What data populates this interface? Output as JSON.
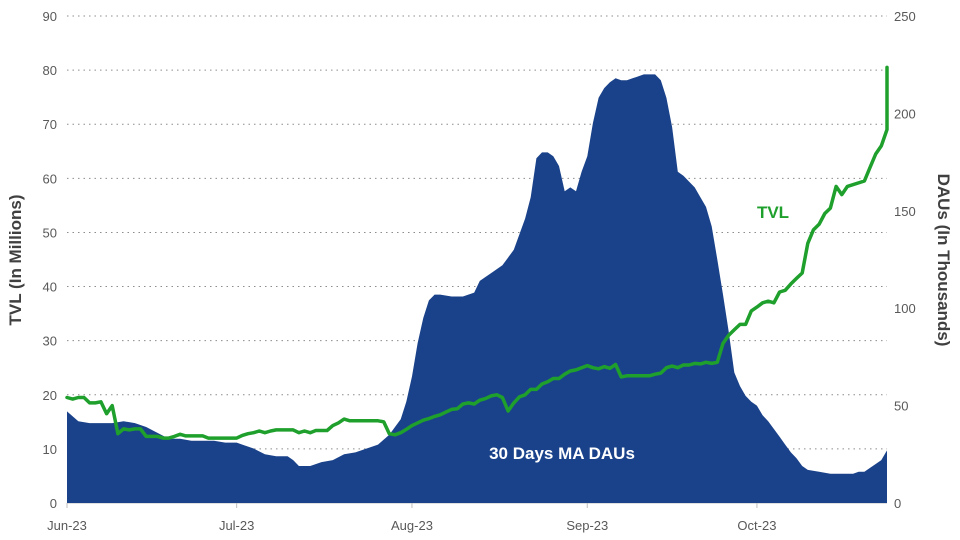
{
  "chart_data": {
    "type": "area+line",
    "x_ticks": [
      "Jun-23",
      "Jul-23",
      "Aug-23",
      "Sep-23",
      "Oct-23"
    ],
    "x_tick_days": [
      0,
      30,
      61,
      92,
      122
    ],
    "x_range_days": [
      0,
      145
    ],
    "y_left": {
      "label": "TVL (In Millions)",
      "min": 0,
      "max": 90,
      "ticks": [
        0,
        10,
        20,
        30,
        40,
        50,
        60,
        70,
        80,
        90
      ]
    },
    "y_right": {
      "label": "DAUs (In Thousands)",
      "min": 0,
      "max": 250,
      "ticks": [
        0,
        50,
        100,
        150,
        200,
        250
      ]
    },
    "grid": true,
    "series": [
      {
        "name": "30 Days MA DAUs",
        "kind": "area",
        "axis": "right",
        "color": "#1a428a",
        "points": [
          [
            0,
            47
          ],
          [
            2,
            42
          ],
          [
            4,
            41
          ],
          [
            6,
            41
          ],
          [
            8,
            41
          ],
          [
            10,
            42
          ],
          [
            12,
            41
          ],
          [
            14,
            39
          ],
          [
            16,
            36
          ],
          [
            18,
            33
          ],
          [
            20,
            33
          ],
          [
            22,
            32
          ],
          [
            24,
            32
          ],
          [
            26,
            32
          ],
          [
            28,
            31
          ],
          [
            30,
            31
          ],
          [
            31,
            30
          ],
          [
            33,
            28
          ],
          [
            35,
            25
          ],
          [
            37,
            24
          ],
          [
            39,
            24
          ],
          [
            40,
            22
          ],
          [
            41,
            19
          ],
          [
            43,
            19
          ],
          [
            45,
            21
          ],
          [
            47,
            22
          ],
          [
            49,
            25
          ],
          [
            51,
            26
          ],
          [
            53,
            28
          ],
          [
            55,
            30
          ],
          [
            57,
            35
          ],
          [
            59,
            43
          ],
          [
            60,
            52
          ],
          [
            61,
            65
          ],
          [
            62,
            82
          ],
          [
            63,
            95
          ],
          [
            64,
            104
          ],
          [
            65,
            107
          ],
          [
            66,
            107
          ],
          [
            68,
            106
          ],
          [
            70,
            106
          ],
          [
            72,
            108
          ],
          [
            73,
            114
          ],
          [
            75,
            118
          ],
          [
            77,
            122
          ],
          [
            79,
            130
          ],
          [
            81,
            146
          ],
          [
            82,
            157
          ],
          [
            83,
            177
          ],
          [
            84,
            180
          ],
          [
            85,
            180
          ],
          [
            86,
            178
          ],
          [
            87,
            173
          ],
          [
            88,
            160
          ],
          [
            89,
            162
          ],
          [
            90,
            160
          ],
          [
            91,
            170
          ],
          [
            92,
            178
          ],
          [
            93,
            195
          ],
          [
            94,
            208
          ],
          [
            95,
            213
          ],
          [
            96,
            216
          ],
          [
            97,
            218
          ],
          [
            98,
            217
          ],
          [
            99,
            217
          ],
          [
            100,
            218
          ],
          [
            101,
            219
          ],
          [
            102,
            220
          ],
          [
            103,
            220
          ],
          [
            104,
            220
          ],
          [
            105,
            217
          ],
          [
            106,
            208
          ],
          [
            107,
            193
          ],
          [
            108,
            170
          ],
          [
            109,
            168
          ],
          [
            110,
            165
          ],
          [
            111,
            162
          ],
          [
            112,
            157
          ],
          [
            113,
            152
          ],
          [
            114,
            142
          ],
          [
            115,
            125
          ],
          [
            116,
            107
          ],
          [
            117,
            88
          ],
          [
            118,
            67
          ],
          [
            119,
            60
          ],
          [
            120,
            55
          ],
          [
            121,
            52
          ],
          [
            122,
            50
          ],
          [
            123,
            45
          ],
          [
            124,
            42
          ],
          [
            125,
            38
          ],
          [
            126,
            34
          ],
          [
            127,
            30
          ],
          [
            128,
            26
          ],
          [
            129,
            23
          ],
          [
            130,
            19
          ],
          [
            131,
            17
          ],
          [
            133,
            16
          ],
          [
            135,
            15
          ],
          [
            137,
            15
          ],
          [
            139,
            15
          ],
          [
            140,
            16
          ],
          [
            141,
            16
          ],
          [
            142,
            18
          ],
          [
            143,
            20
          ],
          [
            144,
            22
          ],
          [
            145,
            27
          ],
          [
            145.5,
            30
          ],
          [
            146,
            36
          ]
        ]
      },
      {
        "name": "TVL",
        "kind": "line",
        "axis": "left",
        "color": "#1fa02c",
        "points": [
          [
            0,
            19.5
          ],
          [
            1,
            19.2
          ],
          [
            2,
            19.5
          ],
          [
            3,
            19.5
          ],
          [
            4,
            18.5
          ],
          [
            5,
            18.5
          ],
          [
            6,
            18.7
          ],
          [
            7,
            16.5
          ],
          [
            8,
            18
          ],
          [
            9,
            12.8
          ],
          [
            10,
            13.7
          ],
          [
            11,
            13.5
          ],
          [
            12,
            13.7
          ],
          [
            13,
            13.7
          ],
          [
            14,
            12.3
          ],
          [
            16,
            12.3
          ],
          [
            17,
            12
          ],
          [
            18,
            12
          ],
          [
            19,
            12.3
          ],
          [
            20,
            12.7
          ],
          [
            21,
            12.4
          ],
          [
            24,
            12.4
          ],
          [
            25,
            12
          ],
          [
            30,
            12
          ],
          [
            31,
            12.5
          ],
          [
            32,
            12.8
          ],
          [
            33,
            13
          ],
          [
            34,
            13.3
          ],
          [
            35,
            13
          ],
          [
            36,
            13.3
          ],
          [
            37,
            13.5
          ],
          [
            40,
            13.5
          ],
          [
            41,
            13
          ],
          [
            42,
            13.3
          ],
          [
            43,
            13
          ],
          [
            44,
            13.4
          ],
          [
            46,
            13.4
          ],
          [
            47,
            14.3
          ],
          [
            48,
            14.8
          ],
          [
            49,
            15.5
          ],
          [
            50,
            15.2
          ],
          [
            53,
            15.2
          ],
          [
            55,
            15.2
          ],
          [
            56,
            15
          ],
          [
            57,
            12.8
          ],
          [
            58,
            12.6
          ],
          [
            59,
            13
          ],
          [
            60,
            13.6
          ],
          [
            61,
            14.3
          ],
          [
            62,
            14.8
          ],
          [
            63,
            15.3
          ],
          [
            64,
            15.6
          ],
          [
            65,
            16
          ],
          [
            66,
            16.3
          ],
          [
            67,
            16.8
          ],
          [
            68,
            17.3
          ],
          [
            69,
            17.4
          ],
          [
            70,
            18.3
          ],
          [
            71,
            18.5
          ],
          [
            72,
            18.3
          ],
          [
            73,
            19
          ],
          [
            74,
            19.3
          ],
          [
            75,
            19.8
          ],
          [
            76,
            20
          ],
          [
            77,
            19.5
          ],
          [
            78,
            17
          ],
          [
            79,
            18.5
          ],
          [
            80,
            19.6
          ],
          [
            81,
            20
          ],
          [
            82,
            21
          ],
          [
            83,
            21
          ],
          [
            84,
            22
          ],
          [
            85,
            22.4
          ],
          [
            86,
            23
          ],
          [
            87,
            23
          ],
          [
            88,
            23.8
          ],
          [
            89,
            24.4
          ],
          [
            90,
            24.6
          ],
          [
            91,
            25
          ],
          [
            92,
            25.4
          ],
          [
            93,
            25
          ],
          [
            94,
            24.8
          ],
          [
            95,
            25.2
          ],
          [
            96,
            24.9
          ],
          [
            97,
            25.6
          ],
          [
            98,
            23.3
          ],
          [
            99,
            23.5
          ],
          [
            102,
            23.5
          ],
          [
            103,
            23.5
          ],
          [
            104,
            23.8
          ],
          [
            105,
            24
          ],
          [
            106,
            25
          ],
          [
            107,
            25.3
          ],
          [
            108,
            25
          ],
          [
            109,
            25.5
          ],
          [
            110,
            25.5
          ],
          [
            111,
            25.8
          ],
          [
            112,
            25.7
          ],
          [
            113,
            26
          ],
          [
            114,
            25.8
          ],
          [
            115,
            26
          ],
          [
            116,
            29.5
          ],
          [
            117,
            31
          ],
          [
            118,
            32
          ],
          [
            119,
            33
          ],
          [
            120,
            33
          ],
          [
            121,
            35.5
          ],
          [
            122,
            36.2
          ],
          [
            123,
            37
          ],
          [
            124,
            37.3
          ],
          [
            125,
            37
          ],
          [
            126,
            39
          ],
          [
            127,
            39.3
          ],
          [
            128,
            40.5
          ],
          [
            129,
            41.5
          ],
          [
            130,
            42.5
          ],
          [
            131,
            48
          ],
          [
            132,
            50.5
          ],
          [
            133,
            51.5
          ],
          [
            134,
            53.5
          ],
          [
            135,
            54.5
          ],
          [
            136,
            58.5
          ],
          [
            137,
            57
          ],
          [
            138,
            58.5
          ],
          [
            141,
            59.5
          ],
          [
            142,
            62
          ],
          [
            143,
            64.5
          ],
          [
            144,
            66
          ],
          [
            145,
            69
          ],
          [
            146,
            70
          ],
          [
            147,
            70.5
          ],
          [
            148,
            73
          ],
          [
            149,
            80.5
          ]
        ]
      }
    ],
    "annotations": [
      {
        "text": "30 Days MA DAUs",
        "color": "#ffffff"
      },
      {
        "text": "TVL",
        "color": "#1fa02c"
      }
    ]
  }
}
